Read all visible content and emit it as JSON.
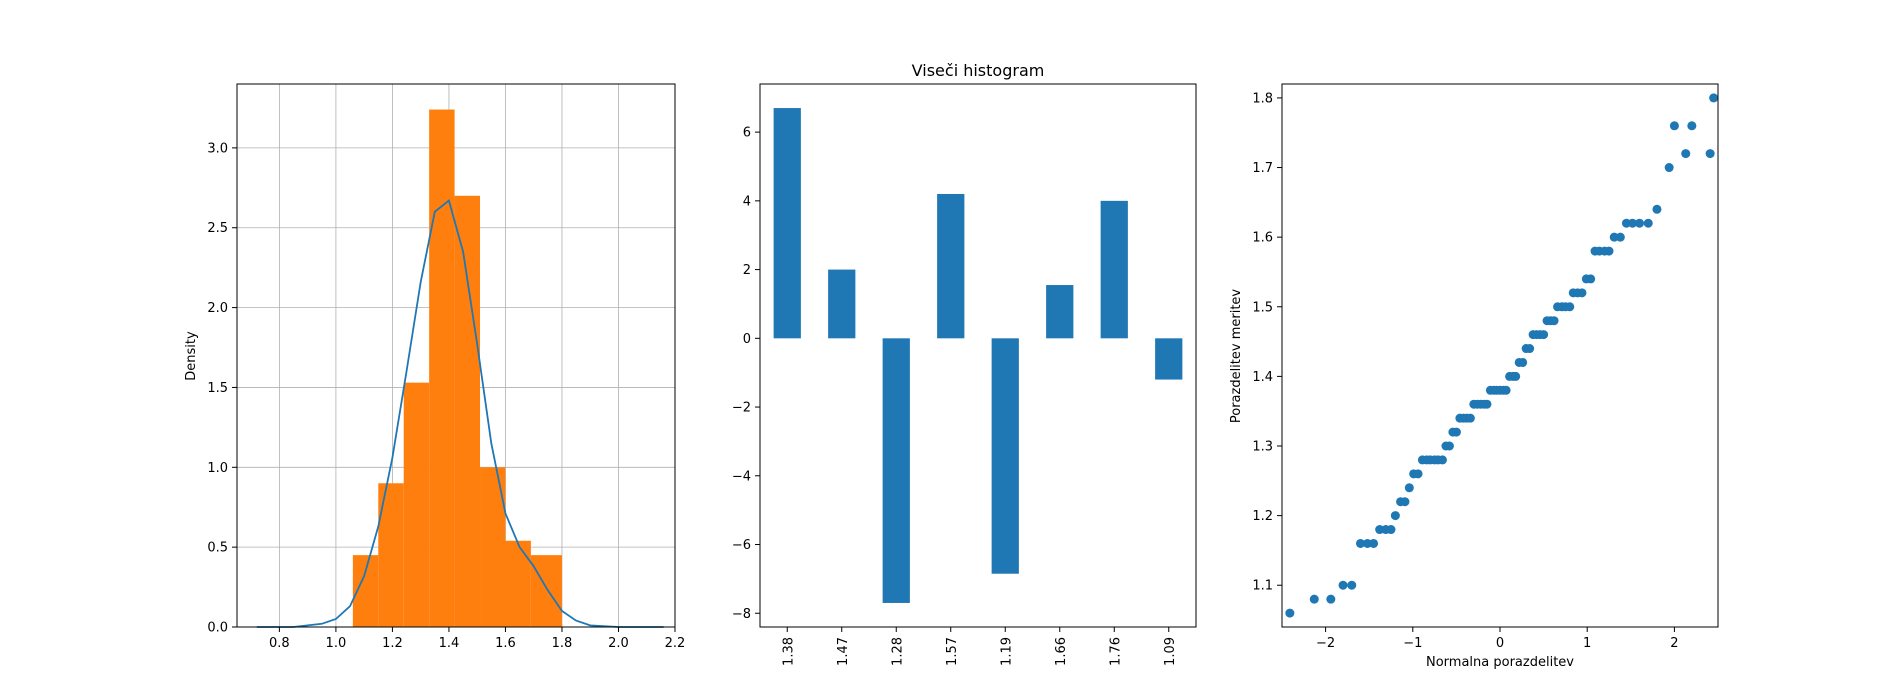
{
  "chart_data": [
    {
      "type": "bar",
      "subtype": "histogram-with-kde",
      "title": "",
      "xlabel": "",
      "ylabel": "Density",
      "xlim": [
        0.65,
        2.2
      ],
      "ylim": [
        0,
        3.4
      ],
      "grid": true,
      "x_ticks": [
        "0.8",
        "1.0",
        "1.2",
        "1.4",
        "1.6",
        "1.8",
        "2.0",
        "2.2"
      ],
      "y_ticks": [
        "0.0",
        "0.5",
        "1.0",
        "1.5",
        "2.0",
        "2.5",
        "3.0"
      ],
      "histogram": {
        "color": "#ff7f0e",
        "bin_edges": [
          1.06,
          1.15,
          1.24,
          1.33,
          1.42,
          1.51,
          1.6,
          1.69,
          1.8
        ],
        "density": [
          0.45,
          0.9,
          1.53,
          3.24,
          2.7,
          1.0,
          0.54,
          0.45
        ]
      },
      "kde": {
        "color": "#1f77b4",
        "x": [
          0.72,
          0.85,
          0.95,
          1.0,
          1.05,
          1.1,
          1.15,
          1.2,
          1.25,
          1.3,
          1.35,
          1.4,
          1.45,
          1.5,
          1.55,
          1.6,
          1.65,
          1.7,
          1.75,
          1.8,
          1.85,
          1.9,
          2.0,
          2.1,
          2.16
        ],
        "y": [
          0.0,
          0.0,
          0.02,
          0.05,
          0.13,
          0.32,
          0.63,
          1.06,
          1.6,
          2.16,
          2.6,
          2.67,
          2.35,
          1.77,
          1.15,
          0.71,
          0.5,
          0.38,
          0.23,
          0.1,
          0.04,
          0.01,
          0.0,
          0.0,
          0.0
        ]
      }
    },
    {
      "type": "bar",
      "title": "Viseči histogram",
      "xlabel": "",
      "ylabel": "",
      "ylim": [
        -8.4,
        7.4
      ],
      "grid": false,
      "color": "#1f77b4",
      "categories": [
        "1.38",
        "1.47",
        "1.28",
        "1.57",
        "1.19",
        "1.66",
        "1.76",
        "1.09"
      ],
      "values": [
        6.7,
        2.0,
        -7.7,
        4.2,
        -6.85,
        1.55,
        4.0,
        -1.2
      ],
      "y_ticks": [
        "−8",
        "−6",
        "−4",
        "−2",
        "0",
        "2",
        "4",
        "6"
      ]
    },
    {
      "type": "scatter",
      "title": "",
      "xlabel": "Normalna porazdelitev",
      "ylabel": "Porazdelitev meritev",
      "xlim": [
        -2.5,
        2.5
      ],
      "ylim": [
        1.04,
        1.82
      ],
      "grid": false,
      "color": "#1f77b4",
      "x_ticks": [
        "−2",
        "−1",
        "0",
        "1",
        "2"
      ],
      "y_ticks": [
        "1.1",
        "1.2",
        "1.3",
        "1.4",
        "1.5",
        "1.6",
        "1.7",
        "1.8"
      ],
      "points": [
        [
          -2.41,
          1.06
        ],
        [
          -2.13,
          1.08
        ],
        [
          -1.94,
          1.08
        ],
        [
          -1.8,
          1.1
        ],
        [
          -1.7,
          1.1
        ],
        [
          -1.6,
          1.16
        ],
        [
          -1.52,
          1.16
        ],
        [
          -1.45,
          1.16
        ],
        [
          -1.38,
          1.18
        ],
        [
          -1.31,
          1.18
        ],
        [
          -1.25,
          1.18
        ],
        [
          -1.2,
          1.2
        ],
        [
          -1.14,
          1.22
        ],
        [
          -1.09,
          1.22
        ],
        [
          -1.04,
          1.24
        ],
        [
          -0.99,
          1.26
        ],
        [
          -0.94,
          1.26
        ],
        [
          -0.89,
          1.28
        ],
        [
          -0.84,
          1.28
        ],
        [
          -0.8,
          1.28
        ],
        [
          -0.75,
          1.28
        ],
        [
          -0.71,
          1.28
        ],
        [
          -0.66,
          1.28
        ],
        [
          -0.62,
          1.3
        ],
        [
          -0.58,
          1.3
        ],
        [
          -0.54,
          1.32
        ],
        [
          -0.5,
          1.32
        ],
        [
          -0.46,
          1.34
        ],
        [
          -0.42,
          1.34
        ],
        [
          -0.38,
          1.34
        ],
        [
          -0.34,
          1.34
        ],
        [
          -0.3,
          1.36
        ],
        [
          -0.26,
          1.36
        ],
        [
          -0.22,
          1.36
        ],
        [
          -0.18,
          1.36
        ],
        [
          -0.15,
          1.36
        ],
        [
          -0.11,
          1.38
        ],
        [
          -0.07,
          1.38
        ],
        [
          -0.04,
          1.38
        ],
        [
          0.0,
          1.38
        ],
        [
          0.04,
          1.38
        ],
        [
          0.07,
          1.38
        ],
        [
          0.11,
          1.4
        ],
        [
          0.15,
          1.4
        ],
        [
          0.18,
          1.4
        ],
        [
          0.22,
          1.42
        ],
        [
          0.26,
          1.42
        ],
        [
          0.3,
          1.44
        ],
        [
          0.34,
          1.44
        ],
        [
          0.38,
          1.46
        ],
        [
          0.42,
          1.46
        ],
        [
          0.46,
          1.46
        ],
        [
          0.5,
          1.46
        ],
        [
          0.54,
          1.48
        ],
        [
          0.58,
          1.48
        ],
        [
          0.62,
          1.48
        ],
        [
          0.66,
          1.5
        ],
        [
          0.71,
          1.5
        ],
        [
          0.75,
          1.5
        ],
        [
          0.8,
          1.5
        ],
        [
          0.84,
          1.52
        ],
        [
          0.89,
          1.52
        ],
        [
          0.94,
          1.52
        ],
        [
          0.99,
          1.54
        ],
        [
          1.04,
          1.54
        ],
        [
          1.09,
          1.58
        ],
        [
          1.14,
          1.58
        ],
        [
          1.2,
          1.58
        ],
        [
          1.25,
          1.58
        ],
        [
          1.31,
          1.6
        ],
        [
          1.38,
          1.6
        ],
        [
          1.45,
          1.62
        ],
        [
          1.52,
          1.62
        ],
        [
          1.6,
          1.62
        ],
        [
          1.7,
          1.62
        ],
        [
          1.8,
          1.64
        ],
        [
          1.94,
          1.7
        ],
        [
          2.13,
          1.72
        ],
        [
          2.41,
          1.72
        ],
        [
          2.0,
          1.76
        ],
        [
          2.2,
          1.76
        ],
        [
          2.45,
          1.8
        ]
      ]
    }
  ]
}
